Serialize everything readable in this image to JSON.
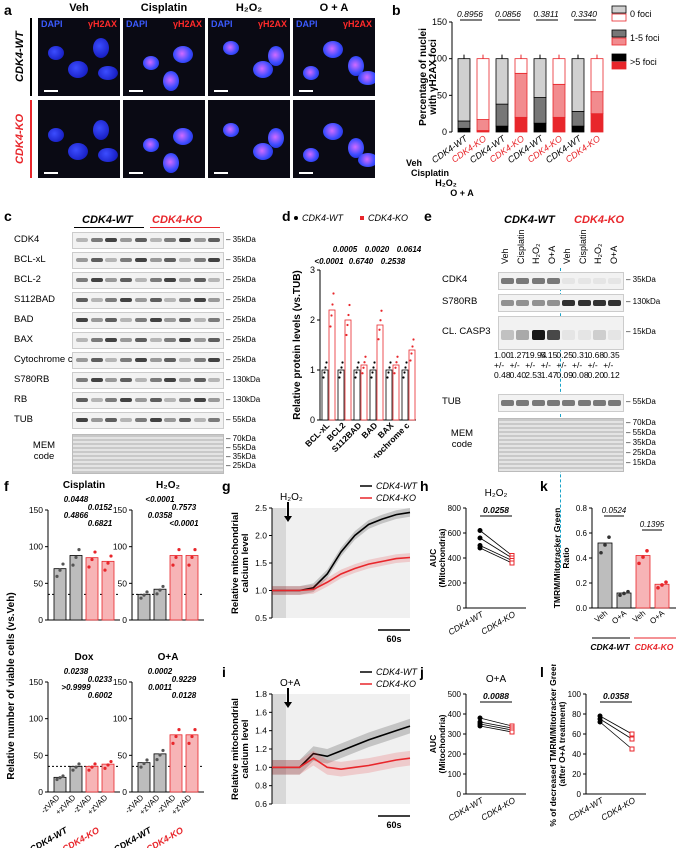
{
  "panels": {
    "a": {
      "letter": "a",
      "conditions": [
        "Veh",
        "Cisplatin",
        "H2O2",
        "O + A"
      ],
      "dapi": "DAPI",
      "gh2ax": "γH2AX",
      "rows": [
        "CDK4-WT",
        "CDK4-KO"
      ]
    },
    "b": {
      "letter": "b",
      "ylabel": "Percentage of nuclei with γH2AX foci",
      "legend": [
        "0 foci",
        "1-5 foci",
        ">5 foci"
      ],
      "pvals": [
        "0.8956",
        "0.0856",
        "0.3811",
        "0.3340"
      ],
      "groups": [
        "Veh",
        "Cisplatin",
        "H2O2",
        "O + A"
      ],
      "genotypes": [
        "CDK4-WT",
        "CDK4-KO"
      ],
      "chart_data": {
        "type": "bar",
        "ylim": [
          0,
          150
        ],
        "yticks": [
          0,
          50,
          100,
          150
        ],
        "series": [
          {
            "name": ">5 foci",
            "values": [
              5,
              2,
              8,
              20,
              12,
              20,
              8,
              25
            ]
          },
          {
            "name": "1-5 foci",
            "values": [
              10,
              15,
              30,
              60,
              35,
              45,
              20,
              30
            ]
          },
          {
            "name": "0 foci",
            "values": [
              85,
              83,
              62,
              20,
              53,
              35,
              72,
              45
            ]
          }
        ]
      }
    },
    "c": {
      "letter": "c",
      "wt": "CDK4-WT",
      "ko": "CDK4-KO",
      "rows": [
        {
          "name": "CDK4",
          "kda": "35kDa"
        },
        {
          "name": "BCL-xL",
          "kda": "35kDa"
        },
        {
          "name": "BCL-2",
          "kda": "25kDa"
        },
        {
          "name": "S112BAD",
          "kda": "25kDa"
        },
        {
          "name": "BAD",
          "kda": "25kDa"
        },
        {
          "name": "BAX",
          "kda": "25kDa"
        },
        {
          "name": "Cytochrome c",
          "kda": "25kDa"
        },
        {
          "name": "S780RB",
          "kda": "130kDa"
        },
        {
          "name": "RB",
          "kda": "130kDa"
        },
        {
          "name": "TUB",
          "kda": "55kDa"
        }
      ],
      "mem": "MEM code",
      "memkda": [
        "70kDa",
        "55kDa",
        "35kDa",
        "25kDa"
      ]
    },
    "d": {
      "letter": "d",
      "ylabel": "Relative protein levels (vs.TUB)",
      "legend": [
        "CDK4-WT",
        "CDK4-KO"
      ],
      "chart_data": {
        "type": "bar",
        "categories": [
          "BCL-xL",
          "BCL2",
          "S112BAD",
          "BAD",
          "BAX",
          "Cytochrome c"
        ],
        "ylim": [
          0,
          3
        ],
        "yticks": [
          0,
          1,
          2,
          3
        ],
        "series": [
          {
            "name": "CDK4-WT",
            "values": [
              1,
              1,
              1,
              1,
              1,
              1
            ]
          },
          {
            "name": "CDK4-KO",
            "values": [
              2.2,
              2.0,
              1.1,
              1.9,
              1.1,
              1.4
            ]
          }
        ],
        "pvals": [
          "<0.0001",
          "0.0005",
          "0.6740",
          "0.0020",
          "0.2538",
          "0.0614"
        ]
      }
    },
    "e": {
      "letter": "e",
      "wt": "CDK4-WT",
      "ko": "CDK4-KO",
      "lanes": [
        "Veh",
        "Cisplatin",
        "H2O2",
        "O+A",
        "Veh",
        "Cisplatin",
        "H2O2",
        "O+A"
      ],
      "rows": [
        {
          "name": "CDK4",
          "kda": "35kDa"
        },
        {
          "name": "S780RB",
          "kda": "130kDa"
        },
        {
          "name": "CL. CASP3",
          "kda": "15kDa"
        },
        {
          "name": "TUB",
          "kda": "55kDa"
        }
      ],
      "quant_top": [
        "1.00",
        "1.27",
        "19.94",
        "5.15",
        "0.25",
        "0.31",
        "0.68",
        "0.35"
      ],
      "quant_pm": [
        "+/-",
        "+/-",
        "+/-",
        "+/-",
        "+/-",
        "+/-",
        "+/-",
        "+/-"
      ],
      "quant_bot": [
        "0.48",
        "0.40",
        "2.53",
        "1.47",
        "0.09",
        "0.08",
        "0.20",
        "0.12"
      ],
      "mem": "MEM code",
      "memkda": [
        "70kDa",
        "55kDa",
        "35kDa",
        "25kDa",
        "15kDa"
      ]
    },
    "f": {
      "letter": "f",
      "ylabel": "Relative number of viable cells (vs.Veh)",
      "titles": [
        "Cisplatin",
        "H2O2",
        "Dox",
        "O+A"
      ],
      "pvals": {
        "cis": [
          "0.0448",
          "0.0152",
          "0.4866",
          "0.6821"
        ],
        "h2o2": [
          "<0.0001",
          "0.7573",
          "0.0358",
          "<0.0001"
        ],
        "dox": [
          "0.0238",
          "0.0233",
          ">0.9999",
          "0.6002"
        ],
        "oa": [
          "0.0002",
          "0.9229",
          "0.0011",
          "0.0128"
        ]
      },
      "xlabels": [
        "-zVAD",
        "+zVAD",
        "-zVAD",
        "+zVAD"
      ],
      "genotypes": [
        "CDK4-WT",
        "CDK4-KO"
      ],
      "chart_data": [
        {
          "title": "Cisplatin",
          "type": "bar",
          "values": [
            70,
            88,
            85,
            80
          ],
          "ylim": [
            0,
            150
          ]
        },
        {
          "title": "H2O2",
          "type": "bar",
          "values": [
            35,
            42,
            88,
            88
          ],
          "ylim": [
            0,
            150
          ]
        },
        {
          "title": "Dox",
          "type": "bar",
          "values": [
            20,
            35,
            35,
            38
          ],
          "ylim": [
            0,
            150
          ]
        },
        {
          "title": "O+A",
          "type": "bar",
          "values": [
            40,
            52,
            78,
            78
          ],
          "ylim": [
            0,
            150
          ]
        }
      ]
    },
    "g": {
      "letter": "g",
      "ylabel": "Relative mitochondrial calcium level",
      "stim": "H2O2",
      "legend": [
        "CDK4-WT",
        "CDK4-KO"
      ],
      "scale": "60s",
      "chart_data": {
        "type": "line",
        "ylim": [
          0.5,
          2.5
        ],
        "yticks": [
          0.5,
          1.0,
          1.5,
          2.0,
          2.5
        ],
        "series": [
          {
            "name": "CDK4-WT",
            "values": [
              1,
              1,
              1,
              1.05,
              1.3,
              1.7,
              2.0,
              2.2,
              2.3,
              2.38,
              2.42
            ]
          },
          {
            "name": "CDK4-KO",
            "values": [
              1,
              1,
              1,
              1.02,
              1.15,
              1.3,
              1.4,
              1.48,
              1.53,
              1.58,
              1.6
            ]
          }
        ]
      }
    },
    "h": {
      "letter": "h",
      "title": "H2O2",
      "ylabel": "AUC (Mitochondria)",
      "pval": "0.0258",
      "genotypes": [
        "CDK4-WT",
        "CDK4-KO"
      ],
      "chart_data": {
        "type": "line",
        "ylim": [
          0,
          800
        ],
        "yticks": [
          0,
          200,
          400,
          600,
          800
        ],
        "pairs": [
          [
            620,
            420
          ],
          [
            560,
            400
          ],
          [
            500,
            380
          ],
          [
            480,
            360
          ]
        ]
      }
    },
    "i": {
      "letter": "i",
      "ylabel": "Relative mitochondrial calcium level",
      "stim": "O+A",
      "legend": [
        "CDK4-WT",
        "CDK4-KO"
      ],
      "scale": "60s",
      "chart_data": {
        "type": "line",
        "ylim": [
          0.6,
          1.8
        ],
        "yticks": [
          0.6,
          0.8,
          1.0,
          1.2,
          1.4,
          1.6,
          1.8
        ],
        "series": [
          {
            "name": "CDK4-WT",
            "values": [
              1,
              1,
              1,
              1.15,
              1.12,
              1.18,
              1.24,
              1.3,
              1.35,
              1.4,
              1.45
            ]
          },
          {
            "name": "CDK4-KO",
            "values": [
              1,
              1,
              1,
              1.1,
              1.0,
              0.98,
              1.0,
              1.02,
              1.05,
              1.08,
              1.1
            ]
          }
        ]
      }
    },
    "j": {
      "letter": "j",
      "title": "O+A",
      "ylabel": "AUC (Mitochondria)",
      "pval": "0.0088",
      "genotypes": [
        "CDK4-WT",
        "CDK4-KO"
      ],
      "chart_data": {
        "type": "line",
        "ylim": [
          0,
          500
        ],
        "yticks": [
          0,
          100,
          200,
          300,
          400,
          500
        ],
        "pairs": [
          [
            380,
            340
          ],
          [
            360,
            330
          ],
          [
            350,
            320
          ],
          [
            340,
            310
          ]
        ]
      }
    },
    "k": {
      "letter": "k",
      "ylabel": "TMRM/Mitotracker Green Ratio",
      "pvals": [
        "0.0524",
        "0.1395"
      ],
      "xlabels": [
        "Veh",
        "O+A",
        "Veh",
        "O+A"
      ],
      "genotypes": [
        "CDK4-WT",
        "CDK4-KO"
      ],
      "chart_data": {
        "type": "bar",
        "ylim": [
          0,
          0.8
        ],
        "yticks": [
          0.0,
          0.2,
          0.4,
          0.6,
          0.8
        ],
        "values": [
          0.52,
          0.12,
          0.42,
          0.19
        ]
      }
    },
    "l": {
      "letter": "l",
      "ylabel": "% of decreased TMRM/Mitotracker Green (after O+A treatment)",
      "pval": "0.0358",
      "genotypes": [
        "CDK4-WT",
        "CDK4-KO"
      ],
      "chart_data": {
        "type": "line",
        "ylim": [
          0,
          100
        ],
        "yticks": [
          0,
          20,
          40,
          60,
          80,
          100
        ],
        "pairs": [
          [
            78,
            60
          ],
          [
            75,
            55
          ],
          [
            72,
            45
          ]
        ]
      }
    }
  },
  "colors": {
    "wt": "#000000",
    "ko": "#e8262b",
    "grey": "#bdbdbd"
  }
}
